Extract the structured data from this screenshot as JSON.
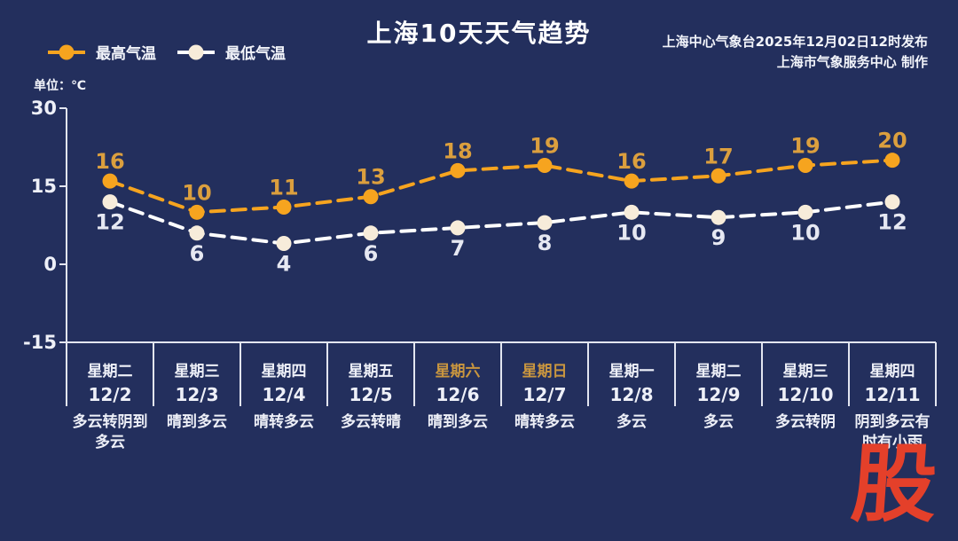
{
  "header": {
    "title": "上海10天天气趋势",
    "release_line1": "上海中心气象台2025年12月02日12时发布",
    "release_line2": "上海市气象服务中心  制作"
  },
  "legend": {
    "max_label": "最高气温",
    "min_label": "最低气温"
  },
  "axis": {
    "unit_label": "单位：℃"
  },
  "footer": {
    "logo_text": "股"
  },
  "colors": {
    "background": "#232F5D",
    "axis": "#E2E5F0",
    "text": "#EEF0F8",
    "max_line": "#F6A41F",
    "max_value_label": "#DB9F3E",
    "min_line": "#FFFFFF",
    "min_marker": "#F7ECDA",
    "min_value_label": "#E6E8F2",
    "weekend_label": "#C9963F",
    "logo": "#E4402A"
  },
  "chart_data": {
    "type": "line",
    "title": "上海10天天气趋势",
    "ylabel": "单位：℃",
    "ylim": [
      -15,
      30
    ],
    "yticks": [
      30,
      15,
      0,
      -15
    ],
    "grid": false,
    "legend_position": "top-left",
    "line_style": "dashed",
    "categories": [
      "12/2",
      "12/3",
      "12/4",
      "12/5",
      "12/6",
      "12/7",
      "12/8",
      "12/9",
      "12/10",
      "12/11"
    ],
    "days": [
      {
        "weekday": "星期二",
        "date": "12/2",
        "condition": "多云转阴到多云",
        "weekend": false
      },
      {
        "weekday": "星期三",
        "date": "12/3",
        "condition": "晴到多云",
        "weekend": false
      },
      {
        "weekday": "星期四",
        "date": "12/4",
        "condition": "晴转多云",
        "weekend": false
      },
      {
        "weekday": "星期五",
        "date": "12/5",
        "condition": "多云转晴",
        "weekend": false
      },
      {
        "weekday": "星期六",
        "date": "12/6",
        "condition": "晴到多云",
        "weekend": true
      },
      {
        "weekday": "星期日",
        "date": "12/7",
        "condition": "晴转多云",
        "weekend": true
      },
      {
        "weekday": "星期一",
        "date": "12/8",
        "condition": "多云",
        "weekend": false
      },
      {
        "weekday": "星期二",
        "date": "12/9",
        "condition": "多云",
        "weekend": false
      },
      {
        "weekday": "星期三",
        "date": "12/10",
        "condition": "多云转阴",
        "weekend": false
      },
      {
        "weekday": "星期四",
        "date": "12/11",
        "condition": "阴到多云有时有小雨",
        "weekend": false
      }
    ],
    "series": [
      {
        "name": "最高气温",
        "values": [
          16,
          10,
          11,
          13,
          18,
          19,
          16,
          17,
          19,
          20
        ]
      },
      {
        "name": "最低气温",
        "values": [
          12,
          6,
          4,
          6,
          7,
          8,
          10,
          9,
          10,
          12
        ]
      }
    ]
  }
}
